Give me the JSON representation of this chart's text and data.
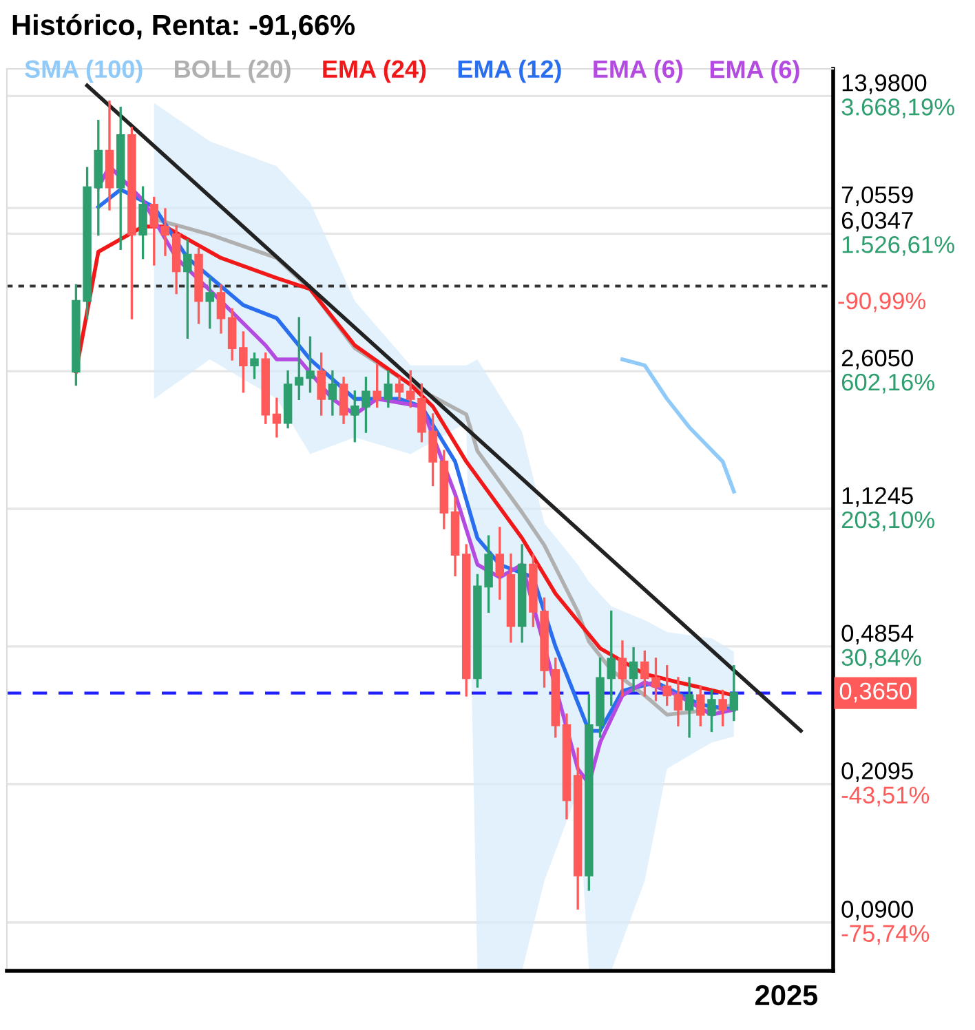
{
  "chart_data": {
    "type": "candlestick",
    "title": "Histórico, Renta: -91,66%",
    "categories": [
      null,
      null,
      null,
      null,
      null,
      null,
      null,
      null,
      null,
      null,
      null,
      null,
      null,
      null,
      null,
      null,
      null,
      null,
      null,
      null,
      null,
      null,
      null,
      null,
      null,
      null,
      null,
      null,
      null,
      null,
      null,
      null,
      null,
      null,
      null,
      null,
      null,
      null,
      null,
      null,
      null,
      null,
      null,
      null,
      null,
      null,
      null,
      null,
      null,
      null,
      null,
      null,
      null,
      null,
      null,
      null,
      null,
      null,
      null,
      null,
      null,
      null,
      null,
      null,
      null,
      null
    ],
    "ohlc": [
      [
        2.6,
        4.4,
        2.4,
        4.0
      ],
      [
        4.0,
        9,
        3.6,
        8
      ],
      [
        8,
        12,
        6,
        10
      ],
      [
        10,
        13.5,
        7,
        8
      ],
      [
        8,
        13,
        5.5,
        11
      ],
      [
        11,
        11.5,
        3.6,
        6
      ],
      [
        6,
        8,
        5.2,
        7.2
      ],
      [
        7.2,
        7.5,
        5,
        6.3
      ],
      [
        6.3,
        7,
        5.3,
        6
      ],
      [
        6,
        6.3,
        4.2,
        4.8
      ],
      [
        4.8,
        5.8,
        3.2,
        5.3
      ],
      [
        5.3,
        5.5,
        3.5,
        4.0
      ],
      [
        4,
        4.6,
        3.4,
        4.2
      ],
      [
        4.2,
        4.4,
        3.3,
        3.6
      ],
      [
        3.6,
        3.8,
        2.8,
        3.0
      ],
      [
        3,
        3.3,
        2.3,
        2.7
      ],
      [
        2.7,
        2.9,
        2.5,
        2.8
      ],
      [
        2.8,
        2.9,
        1.9,
        2.0
      ],
      [
        2.0,
        2.2,
        1.75,
        1.9
      ],
      [
        1.9,
        2.6,
        1.85,
        2.4
      ],
      [
        2.4,
        3.6,
        2.2,
        2.5
      ],
      [
        2.5,
        3.2,
        2.3,
        2.6
      ],
      [
        2.6,
        2.9,
        2.0,
        2.2
      ],
      [
        2.2,
        2.6,
        2.0,
        2.4
      ],
      [
        2.4,
        2.5,
        1.9,
        2.0
      ],
      [
        2.0,
        2.3,
        1.7,
        2.1
      ],
      [
        2.1,
        2.5,
        1.8,
        2.3
      ],
      [
        2.3,
        2.7,
        2.1,
        2.2
      ],
      [
        2.2,
        2.6,
        2.1,
        2.4
      ],
      [
        2.4,
        2.5,
        2.2,
        2.3
      ],
      [
        2.3,
        2.6,
        2.1,
        2.2
      ],
      [
        2.2,
        2.4,
        1.7,
        1.8
      ],
      [
        1.8,
        2.0,
        1.3,
        1.5
      ],
      [
        1.5,
        1.6,
        1.0,
        1.1
      ],
      [
        1.1,
        1.2,
        0.75,
        0.85
      ],
      [
        0.85,
        0.9,
        0.36,
        0.4
      ],
      [
        0.4,
        0.75,
        0.38,
        0.7
      ],
      [
        0.7,
        0.95,
        0.6,
        0.85
      ],
      [
        0.85,
        1.0,
        0.65,
        0.75
      ],
      [
        0.75,
        0.85,
        0.5,
        0.55
      ],
      [
        0.55,
        0.9,
        0.5,
        0.8
      ],
      [
        0.8,
        0.85,
        0.55,
        0.6
      ],
      [
        0.6,
        0.65,
        0.38,
        0.42
      ],
      [
        0.42,
        0.45,
        0.28,
        0.3
      ],
      [
        0.3,
        0.32,
        0.17,
        0.19
      ],
      [
        0.22,
        0.26,
        0.098,
        0.12
      ],
      [
        0.12,
        0.36,
        0.11,
        0.3
      ],
      [
        0.3,
        0.45,
        0.28,
        0.4
      ],
      [
        0.4,
        0.6,
        0.34,
        0.45
      ],
      [
        0.45,
        0.5,
        0.36,
        0.4
      ],
      [
        0.4,
        0.48,
        0.37,
        0.44
      ],
      [
        0.44,
        0.47,
        0.36,
        0.4
      ],
      [
        0.4,
        0.45,
        0.35,
        0.38
      ],
      [
        0.38,
        0.43,
        0.34,
        0.36
      ],
      [
        0.36,
        0.4,
        0.3,
        0.33
      ],
      [
        0.33,
        0.4,
        0.28,
        0.36
      ],
      [
        0.36,
        0.38,
        0.3,
        0.32
      ],
      [
        0.32,
        0.37,
        0.29,
        0.35
      ],
      [
        0.35,
        0.37,
        0.3,
        0.33
      ],
      [
        0.33,
        0.43,
        0.31,
        0.365
      ],
      null,
      null,
      null,
      null,
      null,
      null
    ],
    "series": [
      {
        "name": "SMA (100)",
        "type": "line",
        "color": "#90caf9",
        "values": [
          null,
          null,
          null,
          null,
          null,
          null,
          null,
          null,
          null,
          null,
          null,
          null,
          null,
          null,
          null,
          null,
          null,
          null,
          null,
          null,
          null,
          null,
          null,
          null,
          null,
          null,
          null,
          null,
          null,
          null,
          null,
          null,
          null,
          null,
          null,
          null,
          null,
          null,
          null,
          null,
          null,
          null,
          null,
          null,
          null,
          null,
          null,
          null,
          null,
          2.8,
          null,
          2.7,
          null,
          2.2,
          null,
          1.85,
          null,
          null,
          1.5,
          1.25,
          null,
          null,
          null,
          null,
          null,
          null
        ]
      },
      {
        "name": "BOLL (20)",
        "type": "line",
        "color": "#b0b0b0",
        "values": [
          null,
          null,
          null,
          null,
          null,
          null,
          null,
          6.6,
          null,
          null,
          null,
          null,
          6.0,
          null,
          null,
          null,
          null,
          null,
          5.2,
          null,
          null,
          4.3,
          null,
          null,
          null,
          3.0,
          null,
          null,
          null,
          null,
          2.4,
          null,
          null,
          null,
          null,
          2.0,
          1.6,
          null,
          null,
          null,
          1.1,
          null,
          0.9,
          null,
          null,
          0.6,
          0.5,
          null,
          0.42,
          null,
          null,
          0.36,
          null,
          0.32,
          null,
          null,
          null,
          0.33,
          null,
          0.34,
          null,
          null,
          null,
          null,
          null,
          null
        ],
        "upper": [
          null,
          null,
          null,
          null,
          null,
          null,
          null,
          13.4,
          null,
          null,
          null,
          null,
          10.6,
          null,
          null,
          null,
          null,
          null,
          9.1,
          null,
          null,
          7.3,
          null,
          null,
          null,
          4.0,
          null,
          null,
          null,
          null,
          2.7,
          null,
          null,
          null,
          null,
          2.7,
          2.8,
          null,
          null,
          null,
          1.8,
          null,
          1.03,
          null,
          null,
          0.8,
          0.72,
          null,
          0.62,
          null,
          null,
          0.57,
          null,
          0.53,
          null,
          null,
          null,
          0.51,
          null,
          0.47,
          null,
          null,
          null,
          null,
          null,
          null
        ],
        "lower": [
          null,
          null,
          null,
          null,
          null,
          null,
          null,
          2.2,
          null,
          null,
          null,
          null,
          2.8,
          null,
          null,
          null,
          null,
          null,
          2.2,
          null,
          null,
          1.57,
          null,
          null,
          null,
          1.74,
          null,
          null,
          null,
          null,
          1.57,
          null,
          null,
          null,
          null,
          1.9,
          0.067,
          null,
          null,
          null,
          0.067,
          null,
          0.116,
          null,
          null,
          0.2,
          0.067,
          null,
          0.067,
          null,
          null,
          0.116,
          null,
          0.23,
          null,
          null,
          null,
          0.27,
          null,
          0.28,
          null,
          null,
          null,
          null,
          null,
          null
        ]
      },
      {
        "name": "EMA (24)",
        "type": "line",
        "color": "#f01818",
        "values": [
          2.6,
          null,
          5.4,
          null,
          null,
          null,
          6.3,
          null,
          6.3,
          null,
          null,
          null,
          null,
          5.2,
          null,
          null,
          null,
          null,
          4.6,
          null,
          null,
          4.3,
          null,
          null,
          null,
          3.05,
          null,
          null,
          null,
          null,
          2.4,
          null,
          2.1,
          null,
          null,
          1.5,
          null,
          null,
          null,
          null,
          0.94,
          null,
          null,
          0.67,
          null,
          null,
          null,
          0.48,
          null,
          null,
          null,
          0.41,
          null,
          null,
          0.39,
          null,
          null,
          null,
          null,
          0.36,
          null,
          null,
          null,
          null,
          null,
          null
        ]
      },
      {
        "name": "EMA (12)",
        "type": "line",
        "color": "#2a6ef0",
        "values": [
          null,
          null,
          7.1,
          null,
          7.9,
          null,
          null,
          7.1,
          null,
          null,
          5.2,
          null,
          null,
          null,
          null,
          3.9,
          null,
          null,
          3.6,
          null,
          null,
          2.8,
          null,
          null,
          null,
          2.2,
          null,
          null,
          null,
          2.2,
          null,
          2.1,
          null,
          null,
          1.5,
          null,
          0.94,
          null,
          0.8,
          null,
          null,
          0.74,
          null,
          0.485,
          null,
          null,
          0.29,
          0.29,
          null,
          0.37,
          null,
          null,
          0.39,
          null,
          null,
          null,
          0.34,
          null,
          null,
          0.33,
          null,
          null,
          null,
          null,
          null,
          null
        ]
      },
      {
        "name": "EMA (6)",
        "type": "line",
        "color": "#b44be1",
        "values": [
          null,
          null,
          8,
          9.1,
          null,
          null,
          7.4,
          null,
          null,
          5.2,
          null,
          null,
          null,
          4.0,
          null,
          null,
          null,
          3.05,
          2.8,
          null,
          2.8,
          null,
          null,
          2.2,
          null,
          2.0,
          null,
          2.2,
          null,
          null,
          null,
          2.1,
          null,
          null,
          1.23,
          null,
          0.8,
          null,
          0.74,
          null,
          0.8,
          null,
          null,
          null,
          null,
          0.23,
          0.21,
          0.27,
          null,
          0.36,
          null,
          0.39,
          null,
          null,
          0.36,
          null,
          null,
          0.32,
          null,
          0.33,
          null,
          null,
          null,
          null,
          null,
          null
        ]
      },
      {
        "type": "line",
        "color": "#222222",
        "values": [
          null,
          14.9,
          null,
          null,
          null,
          null,
          null,
          null,
          null,
          null,
          null,
          null,
          null,
          null,
          null,
          null,
          null,
          null,
          null,
          null,
          null,
          null,
          null,
          null,
          null,
          null,
          null,
          null,
          null,
          null,
          null,
          null,
          null,
          null,
          null,
          null,
          null,
          null,
          null,
          null,
          null,
          null,
          null,
          null,
          null,
          null,
          null,
          null,
          null,
          null,
          null,
          null,
          null,
          null,
          null,
          null,
          null,
          null,
          null,
          null,
          null,
          null,
          null,
          null,
          null,
          0.29
        ]
      }
    ],
    "ref_lines": [
      {
        "axis": "y",
        "value": 4.38,
        "color": "#333333",
        "line_style": "dotted"
      },
      {
        "axis": "y",
        "value": 0.365,
        "label": "0,3650",
        "color": "#2020ff",
        "line_style": "dashed"
      }
    ],
    "annotations": [
      "-90,99%",
      "2025",
      "3.668,19%",
      "1.526,61%",
      "602,16%",
      "203,10%",
      "30,84%",
      "-43,51%",
      "-75,74%",
      "EMA (6)"
    ],
    "log": true,
    "ylim": [
      0.067,
      16.5
    ],
    "yticks": [
      {
        "value": 13.98,
        "label": "13,9800"
      },
      {
        "value": 7.0559,
        "label": "7,0559"
      },
      {
        "value": 6.0347,
        "label": "6,0347"
      },
      {
        "value": 2.605,
        "label": "2,6050"
      },
      {
        "value": 1.1245,
        "label": "1,1245"
      },
      {
        "value": 0.4854,
        "label": "0,4854"
      },
      {
        "value": 0.2095,
        "label": "0,2095"
      },
      {
        "value": 0.09,
        "label": "0,0900"
      }
    ],
    "grid": true,
    "legend": "top"
  }
}
